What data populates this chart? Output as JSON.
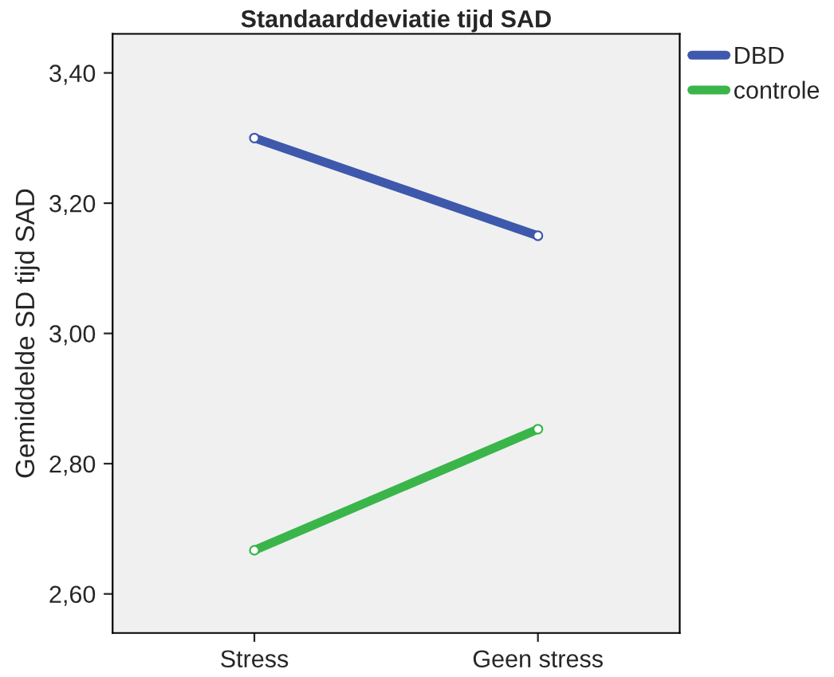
{
  "chart_data": {
    "type": "line",
    "title": "Standaarddeviatie tijd SAD",
    "ylabel": "Gemiddelde SD tijd SAD",
    "categories": [
      "Stress",
      "Geen stress"
    ],
    "series": [
      {
        "name": "DBD",
        "color": "#3e58ac",
        "values": [
          3.3,
          3.15
        ]
      },
      {
        "name": "controle",
        "color": "#3ab54a",
        "values": [
          2.667,
          2.853
        ]
      }
    ],
    "ylim": [
      2.54,
      3.46
    ],
    "yticks": [
      {
        "value": 2.6,
        "label": "2,60"
      },
      {
        "value": 2.8,
        "label": "2,80"
      },
      {
        "value": 3.0,
        "label": "3,00"
      },
      {
        "value": 3.2,
        "label": "3,20"
      },
      {
        "value": 3.4,
        "label": "3,40"
      }
    ],
    "marker": "circle",
    "line_style": "solid",
    "legend": "top right",
    "grid": false
  }
}
